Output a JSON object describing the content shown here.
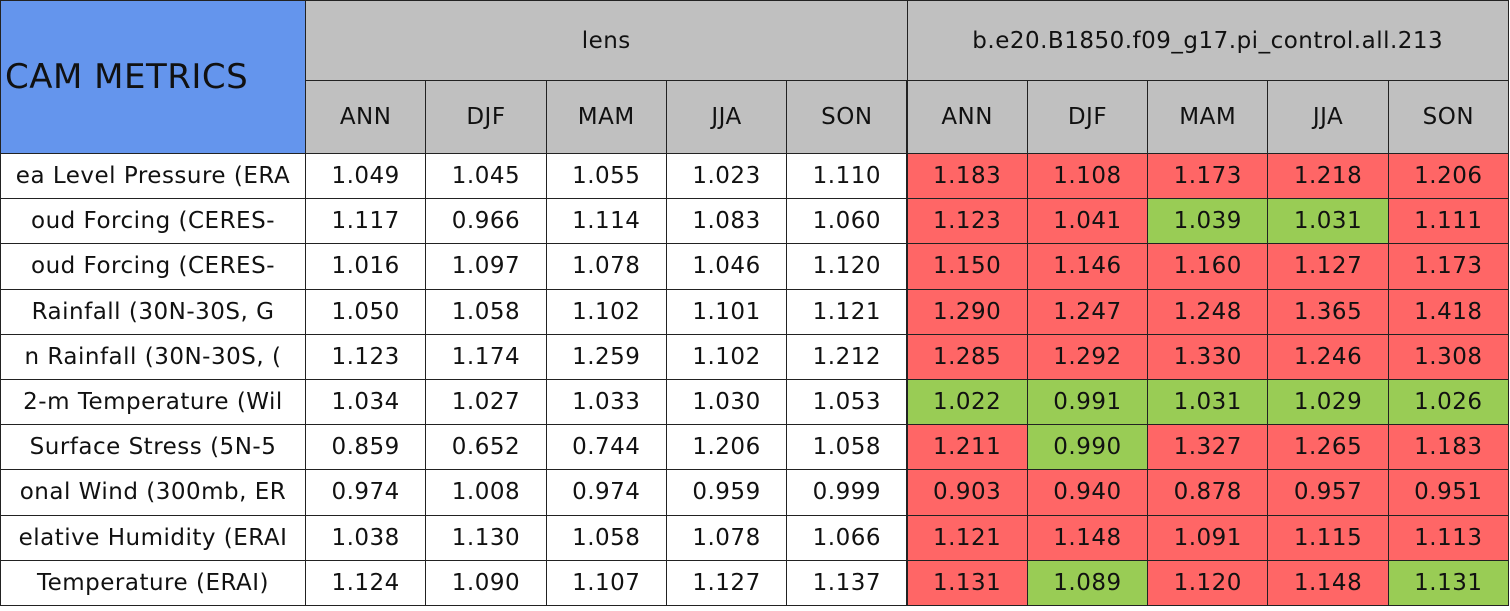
{
  "table": {
    "title": "CAM METRICS",
    "title_color": "#6495ed",
    "groups": [
      "lens",
      "b.e20.B1850.f09_g17.pi_control.all.213"
    ],
    "subheaders": [
      "ANN",
      "DJF",
      "MAM",
      "JJA",
      "SON",
      "ANN",
      "DJF",
      "MAM",
      "JJA",
      "SON"
    ],
    "rows": [
      {
        "label": "ea Level Pressure (ERA",
        "values": [
          "1.049",
          "1.045",
          "1.055",
          "1.023",
          "1.110",
          "1.183",
          "1.108",
          "1.173",
          "1.218",
          "1.206"
        ],
        "colors": [
          "#ffffff",
          "#ffffff",
          "#ffffff",
          "#ffffff",
          "#ffffff",
          "#ff6666",
          "#ff6666",
          "#ff6666",
          "#ff6666",
          "#ff6666"
        ]
      },
      {
        "label": "oud Forcing (CERES-",
        "values": [
          "1.117",
          "0.966",
          "1.114",
          "1.083",
          "1.060",
          "1.123",
          "1.041",
          "1.039",
          "1.031",
          "1.111"
        ],
        "colors": [
          "#ffffff",
          "#ffffff",
          "#ffffff",
          "#ffffff",
          "#ffffff",
          "#ff6666",
          "#ff6666",
          "#99cc55",
          "#99cc55",
          "#ff6666"
        ]
      },
      {
        "label": "oud Forcing (CERES-",
        "values": [
          "1.016",
          "1.097",
          "1.078",
          "1.046",
          "1.120",
          "1.150",
          "1.146",
          "1.160",
          "1.127",
          "1.173"
        ],
        "colors": [
          "#ffffff",
          "#ffffff",
          "#ffffff",
          "#ffffff",
          "#ffffff",
          "#ff6666",
          "#ff6666",
          "#ff6666",
          "#ff6666",
          "#ff6666"
        ]
      },
      {
        "label": "Rainfall (30N-30S, G",
        "values": [
          "1.050",
          "1.058",
          "1.102",
          "1.101",
          "1.121",
          "1.290",
          "1.247",
          "1.248",
          "1.365",
          "1.418"
        ],
        "colors": [
          "#ffffff",
          "#ffffff",
          "#ffffff",
          "#ffffff",
          "#ffffff",
          "#ff6666",
          "#ff6666",
          "#ff6666",
          "#ff6666",
          "#ff6666"
        ]
      },
      {
        "label": "n Rainfall (30N-30S, (",
        "values": [
          "1.123",
          "1.174",
          "1.259",
          "1.102",
          "1.212",
          "1.285",
          "1.292",
          "1.330",
          "1.246",
          "1.308"
        ],
        "colors": [
          "#ffffff",
          "#ffffff",
          "#ffffff",
          "#ffffff",
          "#ffffff",
          "#ff6666",
          "#ff6666",
          "#ff6666",
          "#ff6666",
          "#ff6666"
        ]
      },
      {
        "label": "2-m Temperature (Wil",
        "values": [
          "1.034",
          "1.027",
          "1.033",
          "1.030",
          "1.053",
          "1.022",
          "0.991",
          "1.031",
          "1.029",
          "1.026"
        ],
        "colors": [
          "#ffffff",
          "#ffffff",
          "#ffffff",
          "#ffffff",
          "#ffffff",
          "#99cc55",
          "#99cc55",
          "#99cc55",
          "#99cc55",
          "#99cc55"
        ]
      },
      {
        "label": "Surface Stress (5N-5",
        "values": [
          "0.859",
          "0.652",
          "0.744",
          "1.206",
          "1.058",
          "1.211",
          "0.990",
          "1.327",
          "1.265",
          "1.183"
        ],
        "colors": [
          "#ffffff",
          "#ffffff",
          "#ffffff",
          "#ffffff",
          "#ffffff",
          "#ff6666",
          "#99cc55",
          "#ff6666",
          "#ff6666",
          "#ff6666"
        ]
      },
      {
        "label": "onal Wind (300mb, ER",
        "values": [
          "0.974",
          "1.008",
          "0.974",
          "0.959",
          "0.999",
          "0.903",
          "0.940",
          "0.878",
          "0.957",
          "0.951"
        ],
        "colors": [
          "#ffffff",
          "#ffffff",
          "#ffffff",
          "#ffffff",
          "#ffffff",
          "#ff6666",
          "#ff6666",
          "#ff6666",
          "#ff6666",
          "#ff6666"
        ]
      },
      {
        "label": "elative Humidity (ERAI",
        "values": [
          "1.038",
          "1.130",
          "1.058",
          "1.078",
          "1.066",
          "1.121",
          "1.148",
          "1.091",
          "1.115",
          "1.113"
        ],
        "colors": [
          "#ffffff",
          "#ffffff",
          "#ffffff",
          "#ffffff",
          "#ffffff",
          "#ff6666",
          "#ff6666",
          "#ff6666",
          "#ff6666",
          "#ff6666"
        ]
      },
      {
        "label": "Temperature (ERAI)",
        "values": [
          "1.124",
          "1.090",
          "1.107",
          "1.127",
          "1.137",
          "1.131",
          "1.089",
          "1.120",
          "1.148",
          "1.131"
        ],
        "colors": [
          "#ffffff",
          "#ffffff",
          "#ffffff",
          "#ffffff",
          "#ffffff",
          "#ff6666",
          "#99cc55",
          "#ff6666",
          "#ff6666",
          "#99cc55"
        ]
      }
    ]
  }
}
